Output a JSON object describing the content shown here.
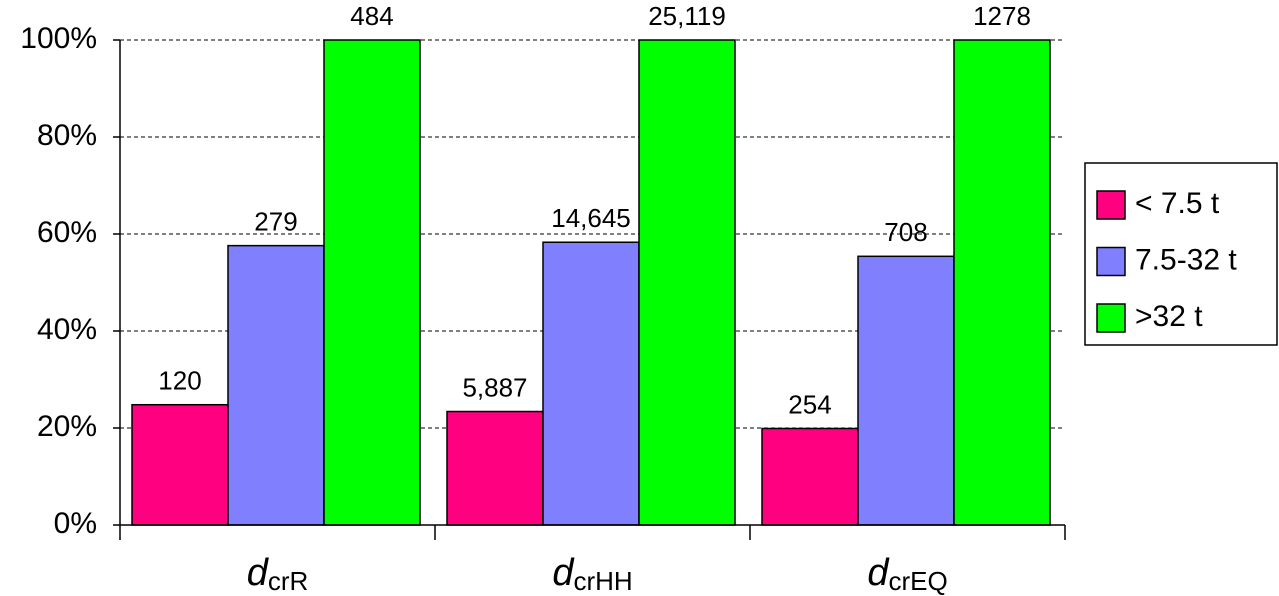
{
  "chart_data": {
    "type": "bar",
    "categories": [
      {
        "base": "d",
        "sub": "crR"
      },
      {
        "base": "d",
        "sub": "crHH"
      },
      {
        "base": "d",
        "sub": "crEQ"
      }
    ],
    "series": [
      {
        "name": "< 7.5 t",
        "color": "#ff0080",
        "values": [
          24.8,
          23.4,
          19.9
        ],
        "counts": [
          "120",
          "5,887",
          "254"
        ]
      },
      {
        "name": "7.5-32 t",
        "color": "#8080ff",
        "values": [
          57.6,
          58.3,
          55.4
        ],
        "counts": [
          "279",
          "14,645",
          "708"
        ]
      },
      {
        "name": ">32 t",
        "color": "#00ff00",
        "values": [
          100,
          100,
          100
        ],
        "counts": [
          "484",
          "25,119",
          "1278"
        ]
      }
    ],
    "ylim": [
      0,
      100
    ],
    "yticks": [
      {
        "value": 0,
        "label": "0%"
      },
      {
        "value": 20,
        "label": "20%"
      },
      {
        "value": 40,
        "label": "40%"
      },
      {
        "value": 60,
        "label": "60%"
      },
      {
        "value": 80,
        "label": "80%"
      },
      {
        "value": 100,
        "label": "100%"
      }
    ],
    "grid": true,
    "legend": "right"
  }
}
